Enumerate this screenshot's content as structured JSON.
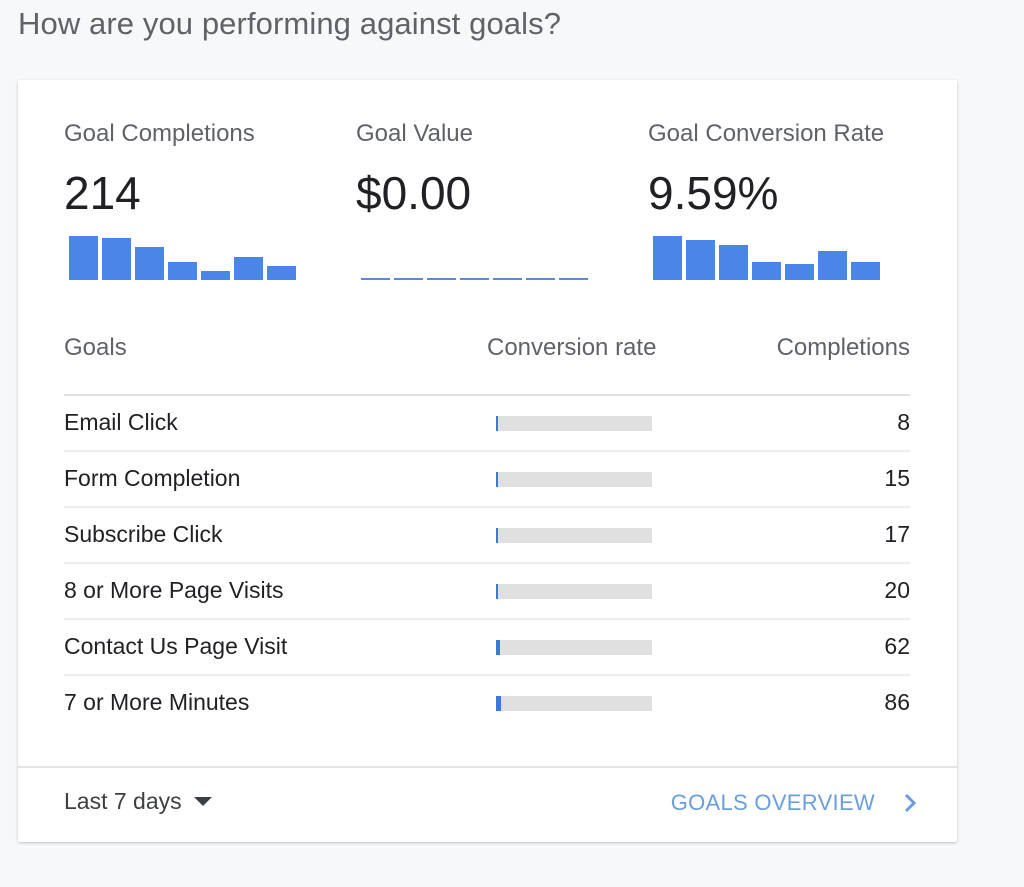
{
  "page": {
    "title": "How are you performing against goals?"
  },
  "metrics": [
    {
      "label": "Goal Completions",
      "value": "214"
    },
    {
      "label": "Goal Value",
      "value": "$0.00"
    },
    {
      "label": "Goal Conversion Rate",
      "value": "9.59%"
    }
  ],
  "table": {
    "headers": {
      "goals": "Goals",
      "rate": "Conversion rate",
      "completions": "Completions"
    },
    "rows": [
      {
        "goal": "Email Click",
        "completions": "8"
      },
      {
        "goal": "Form Completion",
        "completions": "15"
      },
      {
        "goal": "Subscribe Click",
        "completions": "17"
      },
      {
        "goal": "8 or More Page Visits",
        "completions": "20"
      },
      {
        "goal": "Contact Us Page Visit",
        "completions": "62"
      },
      {
        "goal": "7 or More Minutes",
        "completions": "86"
      }
    ]
  },
  "footer": {
    "date_range": "Last 7 days",
    "link_label": "GOALS OVERVIEW"
  },
  "colors": {
    "accent": "#4a86e8",
    "link": "#6a9ee0",
    "track": "#e0e0e0"
  },
  "chart_data": [
    {
      "type": "bar",
      "title": "Goal Completions",
      "categories": [
        "d1",
        "d2",
        "d3",
        "d4",
        "d5",
        "d6",
        "d7"
      ],
      "values": [
        44,
        42,
        33,
        18,
        9,
        23,
        14
      ],
      "note": "sparkline relative heights (px), no axes"
    },
    {
      "type": "bar",
      "title": "Goal Value",
      "categories": [
        "d1",
        "d2",
        "d3",
        "d4",
        "d5",
        "d6",
        "d7"
      ],
      "values": [
        0,
        0,
        0,
        0,
        0,
        0,
        0
      ]
    },
    {
      "type": "bar",
      "title": "Goal Conversion Rate",
      "categories": [
        "d1",
        "d2",
        "d3",
        "d4",
        "d5",
        "d6",
        "d7"
      ],
      "values": [
        44,
        40,
        35,
        18,
        16,
        29,
        18
      ],
      "note": "sparkline relative heights (px), no axes"
    },
    {
      "type": "bar",
      "title": "Conversion rate by goal",
      "categories": [
        "Email Click",
        "Form Completion",
        "Subscribe Click",
        "8 or More Page Visits",
        "Contact Us Page Visit",
        "7 or More Minutes"
      ],
      "values_pct_of_track": [
        1,
        1,
        1,
        1,
        2.5,
        3.5
      ]
    }
  ]
}
